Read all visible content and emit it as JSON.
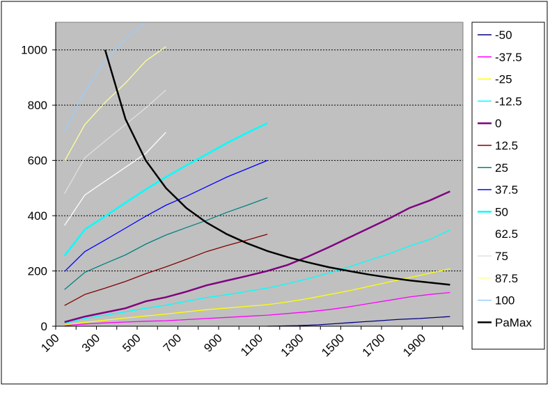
{
  "chart_data": {
    "type": "line",
    "title": "",
    "xlabel": "",
    "ylabel": "",
    "xlim": [
      100,
      2100
    ],
    "ylim": [
      0,
      1100
    ],
    "x_ticks": [
      "100",
      "300",
      "500",
      "700",
      "900",
      "1100",
      "1300",
      "1500",
      "1700",
      "1900"
    ],
    "x_tick_values": [
      100,
      300,
      500,
      700,
      900,
      1100,
      1300,
      1500,
      1700,
      1900
    ],
    "y_ticks": [
      "0",
      "200",
      "400",
      "600",
      "800",
      "1000"
    ],
    "y_tick_values": [
      0,
      200,
      400,
      600,
      800,
      1000
    ],
    "grid": "horizontal dotted",
    "plot_background": "#c0c0c0",
    "legend_position": "right",
    "series": [
      {
        "name": "-50",
        "color": "#000080",
        "points": [
          [
            1150,
            0
          ],
          [
            1300,
            2
          ],
          [
            1400,
            5
          ],
          [
            1500,
            10
          ],
          [
            1600,
            15
          ],
          [
            1700,
            20
          ],
          [
            1800,
            25
          ],
          [
            1900,
            28
          ],
          [
            2050,
            35
          ]
        ]
      },
      {
        "name": "-37.5",
        "color": "#ff00ff",
        "points": [
          [
            150,
            2
          ],
          [
            250,
            8
          ],
          [
            350,
            12
          ],
          [
            450,
            15
          ],
          [
            550,
            18
          ],
          [
            650,
            20
          ],
          [
            750,
            24
          ],
          [
            850,
            28
          ],
          [
            950,
            32
          ],
          [
            1050,
            36
          ],
          [
            1150,
            40
          ],
          [
            1250,
            46
          ],
          [
            1350,
            52
          ],
          [
            1450,
            60
          ],
          [
            1550,
            70
          ],
          [
            1650,
            82
          ],
          [
            1750,
            94
          ],
          [
            1850,
            106
          ],
          [
            1950,
            115
          ],
          [
            2050,
            122
          ]
        ]
      },
      {
        "name": "-25",
        "color": "#ffff00",
        "points": [
          [
            150,
            5
          ],
          [
            250,
            14
          ],
          [
            350,
            22
          ],
          [
            450,
            30
          ],
          [
            550,
            37
          ],
          [
            650,
            44
          ],
          [
            750,
            52
          ],
          [
            850,
            60
          ],
          [
            950,
            66
          ],
          [
            1050,
            72
          ],
          [
            1150,
            78
          ],
          [
            1250,
            88
          ],
          [
            1350,
            100
          ],
          [
            1450,
            114
          ],
          [
            1550,
            128
          ],
          [
            1650,
            144
          ],
          [
            1750,
            160
          ],
          [
            1850,
            176
          ],
          [
            1950,
            192
          ],
          [
            2050,
            208
          ]
        ]
      },
      {
        "name": "-12.5",
        "color": "#00ffff",
        "points": [
          [
            150,
            10
          ],
          [
            250,
            28
          ],
          [
            350,
            40
          ],
          [
            450,
            52
          ],
          [
            550,
            65
          ],
          [
            650,
            76
          ],
          [
            750,
            90
          ],
          [
            850,
            104
          ],
          [
            950,
            114
          ],
          [
            1050,
            126
          ],
          [
            1150,
            138
          ],
          [
            1250,
            154
          ],
          [
            1350,
            172
          ],
          [
            1450,
            192
          ],
          [
            1550,
            214
          ],
          [
            1650,
            238
          ],
          [
            1750,
            262
          ],
          [
            1850,
            290
          ],
          [
            1950,
            314
          ],
          [
            2050,
            348
          ]
        ]
      },
      {
        "name": "0",
        "color": "#800080",
        "points": [
          [
            150,
            15
          ],
          [
            250,
            35
          ],
          [
            350,
            50
          ],
          [
            450,
            65
          ],
          [
            550,
            90
          ],
          [
            650,
            105
          ],
          [
            750,
            125
          ],
          [
            850,
            148
          ],
          [
            950,
            165
          ],
          [
            1050,
            182
          ],
          [
            1150,
            200
          ],
          [
            1250,
            222
          ],
          [
            1350,
            252
          ],
          [
            1450,
            285
          ],
          [
            1550,
            320
          ],
          [
            1650,
            355
          ],
          [
            1750,
            390
          ],
          [
            1850,
            428
          ],
          [
            1950,
            455
          ],
          [
            2050,
            488
          ]
        ]
      },
      {
        "name": "12.5",
        "color": "#800000",
        "points": [
          [
            150,
            75
          ],
          [
            250,
            115
          ],
          [
            350,
            138
          ],
          [
            450,
            162
          ],
          [
            550,
            190
          ],
          [
            650,
            215
          ],
          [
            750,
            242
          ],
          [
            850,
            270
          ],
          [
            950,
            292
          ],
          [
            1050,
            312
          ],
          [
            1150,
            333
          ]
        ]
      },
      {
        "name": "25",
        "color": "#008080",
        "points": [
          [
            150,
            133
          ],
          [
            250,
            195
          ],
          [
            350,
            227
          ],
          [
            450,
            258
          ],
          [
            550,
            297
          ],
          [
            650,
            330
          ],
          [
            750,
            357
          ],
          [
            850,
            383
          ],
          [
            950,
            412
          ],
          [
            1050,
            438
          ],
          [
            1150,
            465
          ]
        ]
      },
      {
        "name": "37.5",
        "color": "#0000ff",
        "points": [
          [
            150,
            198
          ],
          [
            250,
            270
          ],
          [
            350,
            312
          ],
          [
            450,
            355
          ],
          [
            550,
            398
          ],
          [
            650,
            438
          ],
          [
            750,
            470
          ],
          [
            850,
            505
          ],
          [
            950,
            540
          ],
          [
            1050,
            570
          ],
          [
            1150,
            600
          ]
        ]
      },
      {
        "name": "50",
        "color": "#00ffff",
        "points": [
          [
            150,
            255
          ],
          [
            250,
            350
          ],
          [
            350,
            398
          ],
          [
            450,
            447
          ],
          [
            550,
            495
          ],
          [
            650,
            540
          ],
          [
            750,
            582
          ],
          [
            850,
            622
          ],
          [
            950,
            663
          ],
          [
            1050,
            700
          ],
          [
            1150,
            735
          ]
        ]
      },
      {
        "name": "62.5",
        "color": "#ffffff",
        "points": [
          [
            150,
            365
          ],
          [
            250,
            475
          ],
          [
            350,
            525
          ],
          [
            450,
            575
          ],
          [
            550,
            625
          ],
          [
            650,
            702
          ]
        ]
      },
      {
        "name": "75",
        "color": "#e0e0e0",
        "points": [
          [
            150,
            480
          ],
          [
            250,
            610
          ],
          [
            350,
            670
          ],
          [
            450,
            730
          ],
          [
            550,
            790
          ],
          [
            650,
            855
          ]
        ]
      },
      {
        "name": "87.5",
        "color": "#ffff99",
        "points": [
          [
            150,
            598
          ],
          [
            250,
            730
          ],
          [
            350,
            810
          ],
          [
            450,
            880
          ],
          [
            550,
            960
          ],
          [
            650,
            1012
          ]
        ]
      },
      {
        "name": "100",
        "color": "#99ccff",
        "points": [
          [
            150,
            705
          ],
          [
            250,
            850
          ],
          [
            350,
            960
          ],
          [
            450,
            1040
          ],
          [
            550,
            1100
          ]
        ]
      },
      {
        "name": "PaMax",
        "color": "#000000",
        "points": [
          [
            350,
            1000
          ],
          [
            450,
            750
          ],
          [
            550,
            600
          ],
          [
            650,
            500
          ],
          [
            750,
            428
          ],
          [
            850,
            375
          ],
          [
            950,
            333
          ],
          [
            1050,
            300
          ],
          [
            1150,
            272
          ],
          [
            1250,
            250
          ],
          [
            1350,
            231
          ],
          [
            1450,
            214
          ],
          [
            1550,
            200
          ],
          [
            1650,
            187
          ],
          [
            1750,
            176
          ],
          [
            1850,
            166
          ],
          [
            1950,
            158
          ],
          [
            2050,
            150
          ]
        ]
      }
    ]
  }
}
